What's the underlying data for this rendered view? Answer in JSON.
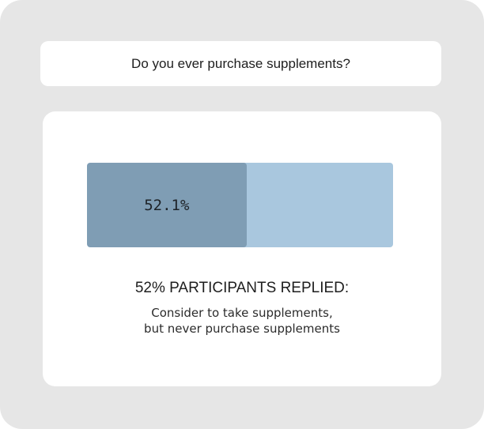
{
  "question": "Do you ever purchase supplements?",
  "result": {
    "fill_fraction": 0.521,
    "value_label": "52.1%",
    "headline": "52% PARTICIPANTS REPLIED:",
    "description_lines": [
      "Consider to take supplements,",
      "but never purchase supplements"
    ]
  },
  "colors": {
    "background": "#e6e6e6",
    "card": "#ffffff",
    "bar_fill": "#7f9db4",
    "bar_track": "#a9c7de"
  }
}
